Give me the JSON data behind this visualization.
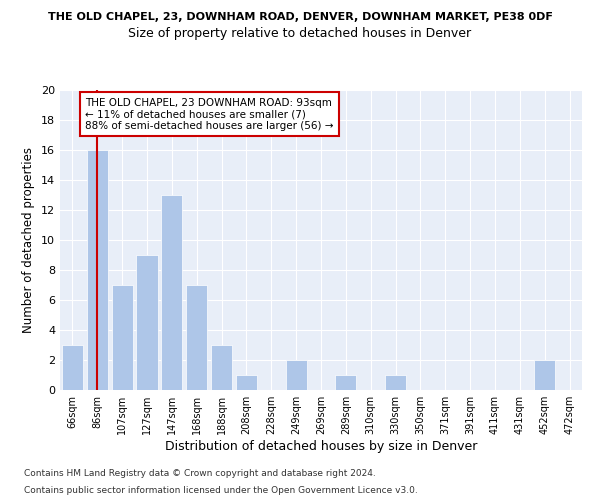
{
  "title1": "THE OLD CHAPEL, 23, DOWNHAM ROAD, DENVER, DOWNHAM MARKET, PE38 0DF",
  "title2": "Size of property relative to detached houses in Denver",
  "xlabel": "Distribution of detached houses by size in Denver",
  "ylabel": "Number of detached properties",
  "categories": [
    "66sqm",
    "86sqm",
    "107sqm",
    "127sqm",
    "147sqm",
    "168sqm",
    "188sqm",
    "208sqm",
    "228sqm",
    "249sqm",
    "269sqm",
    "289sqm",
    "310sqm",
    "330sqm",
    "350sqm",
    "371sqm",
    "391sqm",
    "411sqm",
    "431sqm",
    "452sqm",
    "472sqm"
  ],
  "values": [
    3,
    16,
    7,
    9,
    13,
    7,
    3,
    1,
    0,
    2,
    0,
    1,
    0,
    1,
    0,
    0,
    0,
    0,
    0,
    2,
    0
  ],
  "bar_color": "#aec6e8",
  "reference_line_x": 1,
  "reference_line_color": "#cc0000",
  "ylim": [
    0,
    20
  ],
  "yticks": [
    0,
    2,
    4,
    6,
    8,
    10,
    12,
    14,
    16,
    18,
    20
  ],
  "annotation_box_text": "THE OLD CHAPEL, 23 DOWNHAM ROAD: 93sqm\n← 11% of detached houses are smaller (7)\n88% of semi-detached houses are larger (56) →",
  "annotation_box_color": "#cc0000",
  "background_color": "#e8eef8",
  "footer1": "Contains HM Land Registry data © Crown copyright and database right 2024.",
  "footer2": "Contains public sector information licensed under the Open Government Licence v3.0."
}
